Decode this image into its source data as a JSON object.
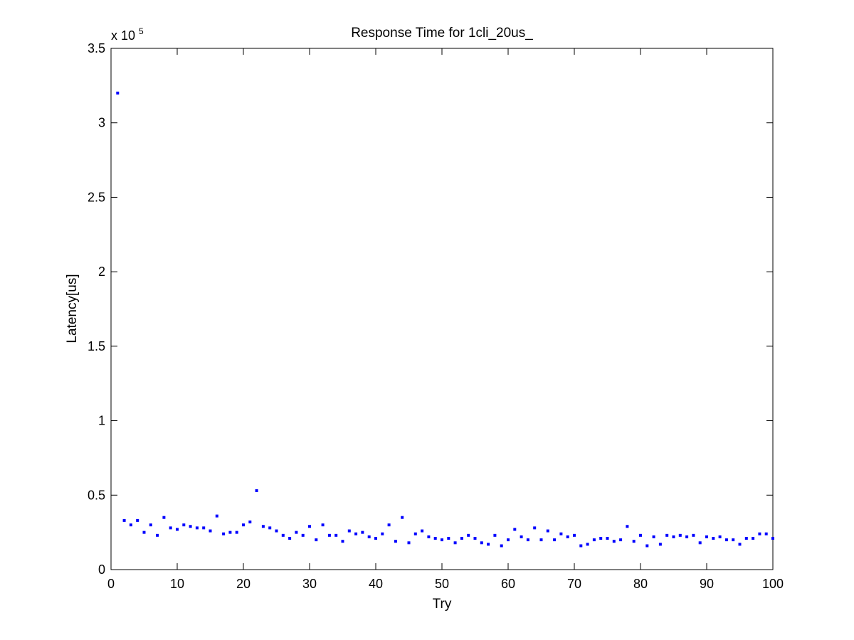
{
  "chart_data": {
    "type": "scatter",
    "title": "Response Time for 1cli_20us_",
    "xlabel": "Try",
    "ylabel": "Latency[us]",
    "y_multiplier_label": "x 10",
    "y_multiplier_exponent": "5",
    "xlim": [
      0,
      100
    ],
    "ylim": [
      0,
      3.5
    ],
    "y_scale_factor": 100000,
    "x_ticks": [
      0,
      10,
      20,
      30,
      40,
      50,
      60,
      70,
      80,
      90,
      100
    ],
    "x_tick_labels": [
      "0",
      "10",
      "20",
      "30",
      "40",
      "50",
      "60",
      "70",
      "80",
      "90",
      "100"
    ],
    "y_ticks": [
      0,
      0.5,
      1,
      1.5,
      2,
      2.5,
      3,
      3.5
    ],
    "y_tick_labels": [
      "0",
      "0.5",
      "1",
      "1.5",
      "2",
      "2.5",
      "3",
      "3.5"
    ],
    "grid": false,
    "marker_color": "#0000ff",
    "series": [
      {
        "x": [
          1,
          2,
          3,
          4,
          5,
          6,
          7,
          8,
          9,
          10,
          11,
          12,
          13,
          14,
          15,
          16,
          17,
          18,
          19,
          20,
          21,
          22,
          23,
          24,
          25,
          26,
          27,
          28,
          29,
          30,
          31,
          32,
          33,
          34,
          35,
          36,
          37,
          38,
          39,
          40,
          41,
          42,
          43,
          44,
          45,
          46,
          47,
          48,
          49,
          50,
          51,
          52,
          53,
          54,
          55,
          56,
          57,
          58,
          59,
          60,
          61,
          62,
          63,
          64,
          65,
          66,
          67,
          68,
          69,
          70,
          71,
          72,
          73,
          74,
          75,
          76,
          77,
          78,
          79,
          80,
          81,
          82,
          83,
          84,
          85,
          86,
          87,
          88,
          89,
          90,
          91,
          92,
          93,
          94,
          95,
          96,
          97,
          98,
          99,
          100
        ],
        "y": [
          3.2,
          0.33,
          0.3,
          0.33,
          0.25,
          0.3,
          0.23,
          0.35,
          0.28,
          0.27,
          0.3,
          0.29,
          0.28,
          0.28,
          0.26,
          0.36,
          0.24,
          0.25,
          0.25,
          0.3,
          0.32,
          0.53,
          0.29,
          0.28,
          0.26,
          0.23,
          0.21,
          0.25,
          0.23,
          0.29,
          0.2,
          0.3,
          0.23,
          0.23,
          0.19,
          0.26,
          0.24,
          0.25,
          0.22,
          0.21,
          0.24,
          0.3,
          0.19,
          0.35,
          0.18,
          0.24,
          0.26,
          0.22,
          0.21,
          0.2,
          0.21,
          0.18,
          0.21,
          0.23,
          0.21,
          0.18,
          0.17,
          0.23,
          0.16,
          0.2,
          0.27,
          0.22,
          0.2,
          0.28,
          0.2,
          0.26,
          0.2,
          0.24,
          0.22,
          0.23,
          0.16,
          0.17,
          0.2,
          0.21,
          0.21,
          0.19,
          0.2,
          0.29,
          0.19,
          0.23,
          0.16,
          0.22,
          0.17,
          0.23,
          0.22,
          0.23,
          0.22,
          0.23,
          0.18,
          0.22,
          0.21,
          0.22,
          0.2,
          0.2,
          0.17,
          0.21,
          0.21,
          0.24,
          0.24,
          0.21
        ]
      }
    ]
  }
}
